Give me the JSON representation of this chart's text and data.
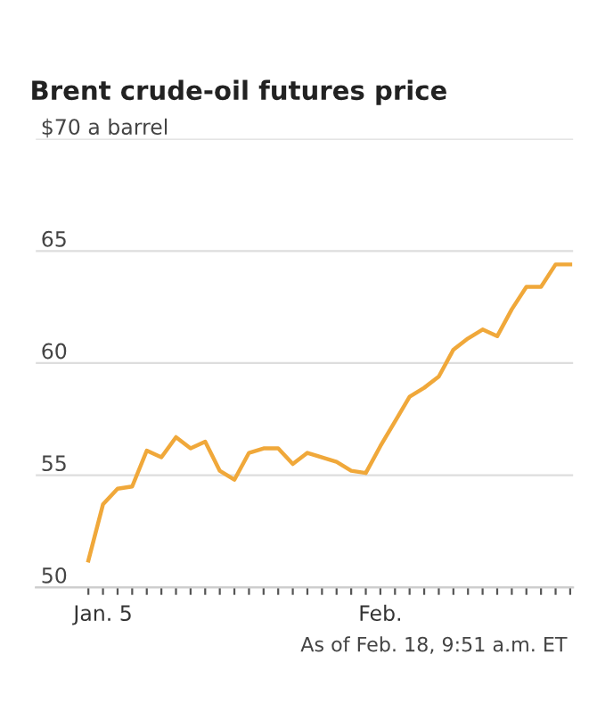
{
  "chart_data": {
    "type": "line",
    "title": "Brent crude-oil futures price",
    "categories": [
      null,
      "Jan. 5",
      null,
      null,
      null,
      null,
      null,
      null,
      null,
      null,
      null,
      null,
      null,
      null,
      null,
      null,
      null,
      null,
      null,
      null,
      "Feb.",
      null,
      null,
      null,
      null,
      null,
      null,
      null,
      null,
      null,
      null,
      null,
      null,
      null
    ],
    "series": [
      {
        "color": "#f0a83a",
        "values": [
          51.2,
          53.7,
          54.4,
          54.5,
          56.1,
          55.8,
          56.7,
          56.2,
          56.5,
          55.2,
          54.8,
          56.0,
          56.2,
          56.2,
          55.5,
          56.0,
          55.8,
          55.6,
          55.2,
          55.1,
          56.3,
          57.4,
          58.5,
          58.9,
          59.4,
          60.6,
          61.1,
          61.5,
          61.2,
          62.4,
          63.4,
          63.4,
          64.4,
          64.4
        ]
      }
    ],
    "ylim": [
      50,
      70
    ],
    "yticks": [
      50,
      55,
      60,
      65,
      {
        "value": 70,
        "label": "$70 a barrel"
      }
    ],
    "grid": "y",
    "marker": "none",
    "line_style": "solid",
    "annotations": [
      "As of Feb. 18, 9:51 a.m. ET"
    ]
  }
}
